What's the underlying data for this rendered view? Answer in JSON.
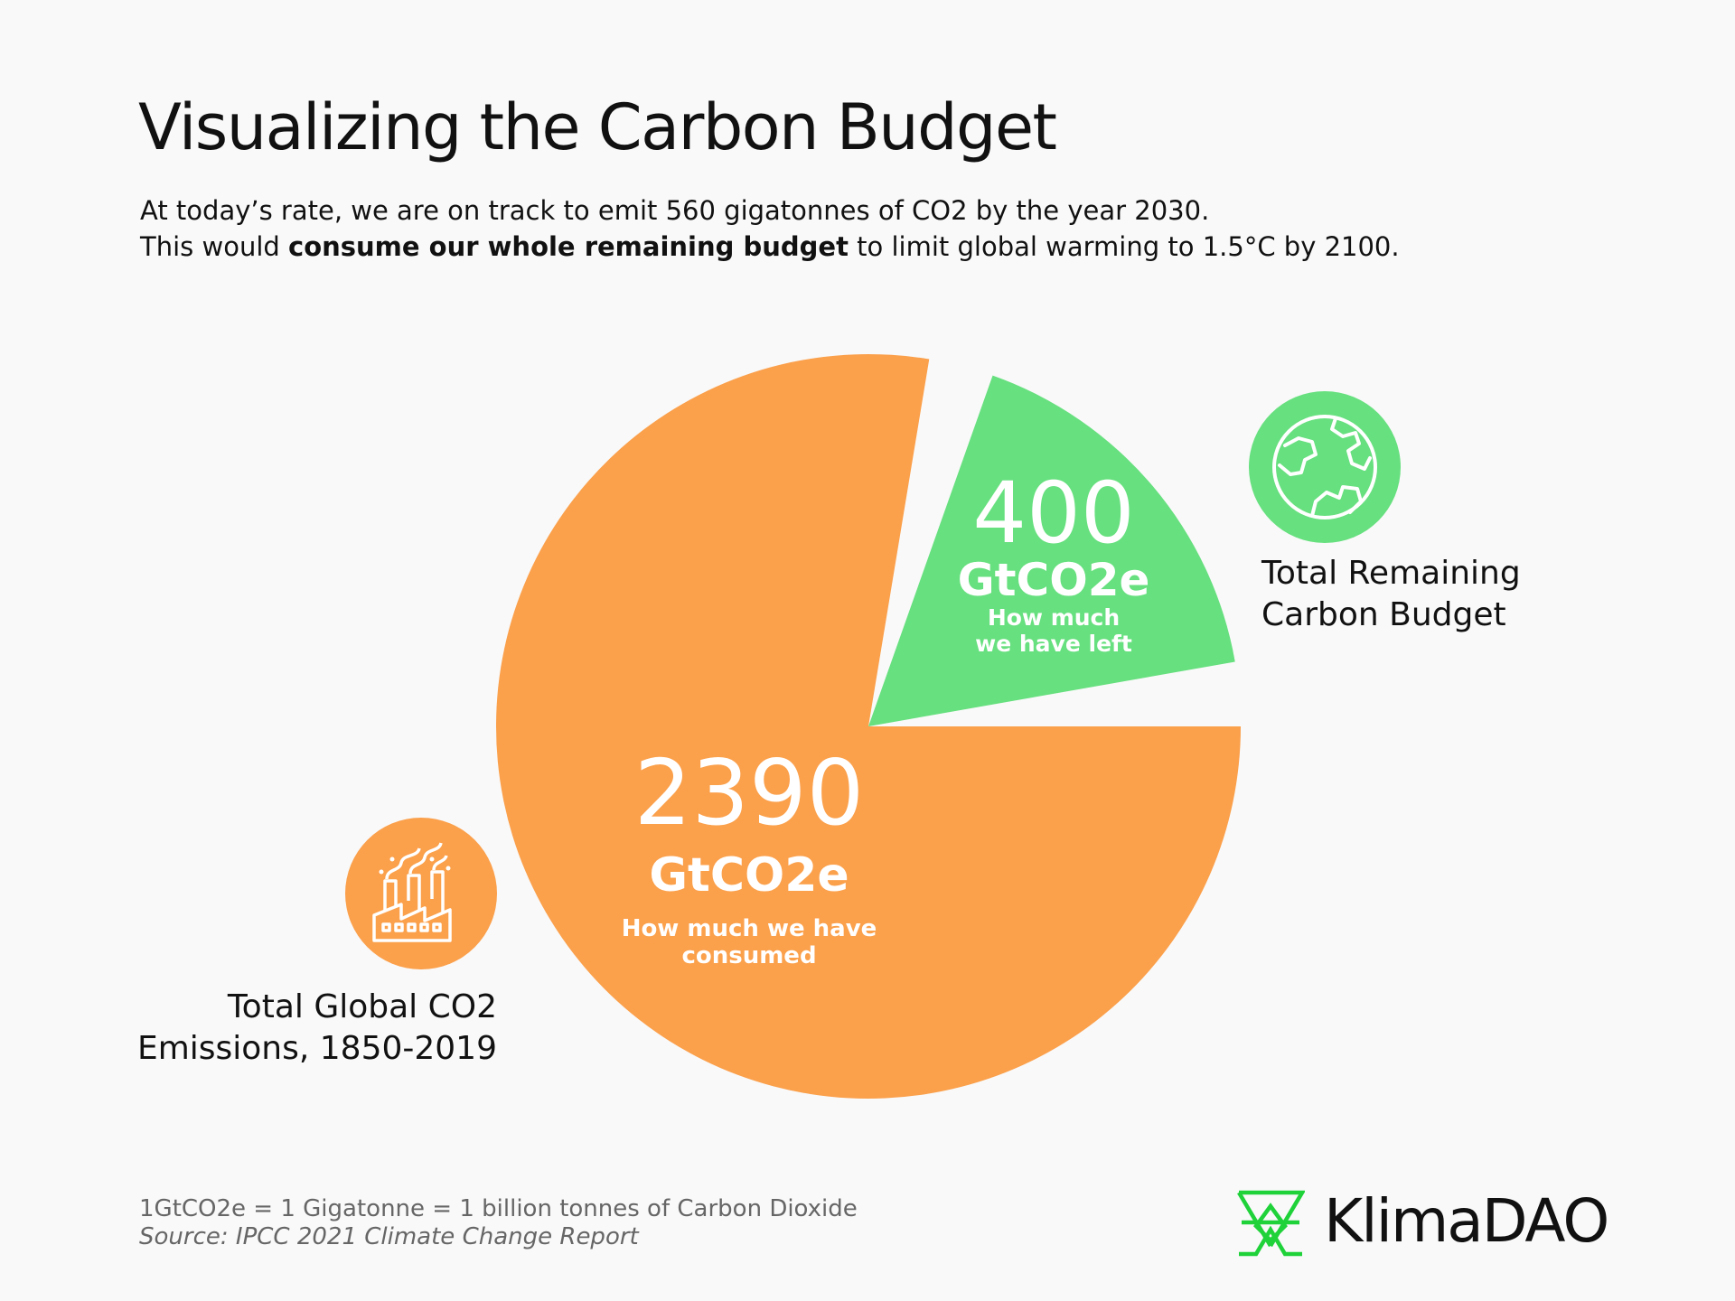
{
  "title": "Visualizing the Carbon Budget",
  "subtitle": {
    "line1": "At today’s rate, we are on track to emit 560 gigatonnes of CO2 by the year 2030.",
    "line2_pre": "This would ",
    "line2_bold": "consume our whole remaining budget",
    "line2_post": " to limit global warming to 1.5°C by 2100."
  },
  "chart_data": {
    "type": "pie",
    "title": "Visualizing the Carbon Budget",
    "slices": [
      {
        "label": "Total Global CO2 Emissions, 1850-2019",
        "value": 2390,
        "value_label": "2390",
        "unit": "GtCO2e",
        "caption": "How much we have consumed",
        "color": "#FBA04B",
        "exploded": false
      },
      {
        "label": "Total Remaining Carbon Budget",
        "value": 400,
        "value_label": "400",
        "unit": "GtCO2e",
        "caption": "How much we have left",
        "color": "#67E07F",
        "exploded": true
      }
    ]
  },
  "labels": {
    "remaining_line1": "Total Remaining",
    "remaining_line2": "Carbon Budget",
    "emissions_line1": "Total Global CO2",
    "emissions_line2": "Emissions, 1850-2019",
    "consumed_caption_1": "How much we have",
    "consumed_caption_2": "consumed",
    "left_caption_1": "How much",
    "left_caption_2": "we have left"
  },
  "icons": {
    "remaining": "globe-icon",
    "emissions": "factory-icon",
    "logo": "klimadao-logo-icon"
  },
  "footer": {
    "note": "1GtCO2e = 1 Gigatonne = 1 billion tonnes of Carbon Dioxide",
    "source": "Source: IPCC 2021 Climate Change Report"
  },
  "brand": {
    "name": "KlimaDAO",
    "color": "#1FD23A"
  },
  "colors": {
    "orange": "#FBA04B",
    "green": "#67E07F",
    "background": "#F9F9F9"
  }
}
